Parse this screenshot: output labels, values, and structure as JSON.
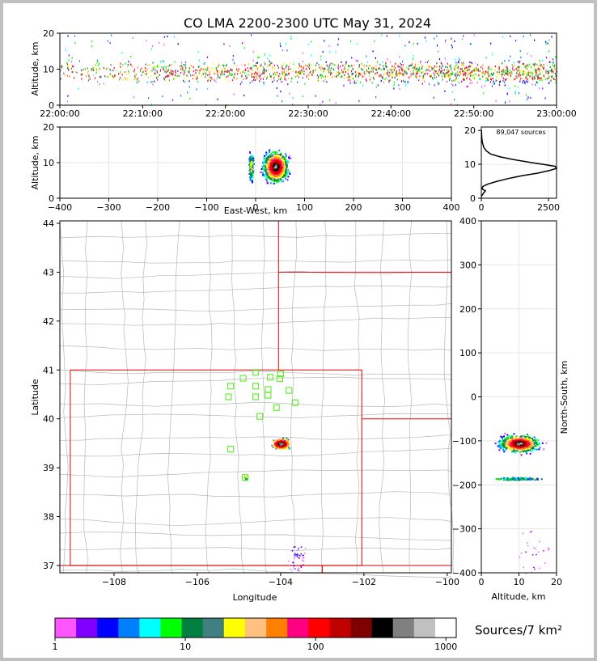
{
  "title": "CO LMA 2200-2300 UTC May 31, 2024",
  "colorbar_label": "Sources/7 km²",
  "chart_data": [
    {
      "panel": "time-height",
      "type": "scatter",
      "ylabel": "Altitude, km",
      "ylim": [
        0,
        20
      ],
      "yticks": [
        "0",
        "10",
        "20"
      ],
      "xticks": [
        "22:00:00",
        "22:10:00",
        "22:20:00",
        "22:30:00",
        "22:40:00",
        "22:50:00",
        "23:00:00"
      ],
      "activity_minutes_heavy": [
        0,
        60
      ],
      "altitude_core_km": [
        5,
        14
      ]
    },
    {
      "panel": "east-west-height",
      "type": "heatmap",
      "xlabel": "East-West, km",
      "ylabel": "Altitude, km",
      "xlim": [
        -400,
        400
      ],
      "ylim": [
        0,
        20
      ],
      "xticks": [
        "−400",
        "−300",
        "−200",
        "−100",
        "0",
        "100",
        "200",
        "300",
        "400"
      ],
      "yticks": [
        "0",
        "10",
        "20"
      ],
      "clusters": [
        {
          "x_center": 40,
          "x_width": 70,
          "z_min": 2,
          "z_max": 20,
          "peak_z": 9
        },
        {
          "x_center": -10,
          "x_width": 12,
          "z_min": 3,
          "z_max": 20,
          "peak_z": 9
        }
      ]
    },
    {
      "panel": "altitude-histogram",
      "type": "line",
      "annotation": "89,047 sources",
      "xlim": [
        0,
        2800
      ],
      "ylim": [
        0,
        21
      ],
      "xticks": [
        "0",
        "2500"
      ],
      "yticks": [
        "0",
        "10",
        "20"
      ],
      "points": [
        [
          0,
          0.5
        ],
        [
          80,
          1.5
        ],
        [
          150,
          2.2
        ],
        [
          20,
          2.8
        ],
        [
          60,
          3.5
        ],
        [
          250,
          4.2
        ],
        [
          600,
          5
        ],
        [
          1000,
          5.8
        ],
        [
          1500,
          6.6
        ],
        [
          2100,
          7.4
        ],
        [
          2550,
          8.2
        ],
        [
          2800,
          8.8
        ],
        [
          2750,
          9.4
        ],
        [
          2300,
          10
        ],
        [
          1800,
          10.6
        ],
        [
          1200,
          11.4
        ],
        [
          700,
          12.2
        ],
        [
          350,
          13
        ],
        [
          180,
          14
        ],
        [
          90,
          15
        ],
        [
          40,
          16.5
        ],
        [
          15,
          18
        ],
        [
          5,
          20
        ]
      ]
    },
    {
      "panel": "plan-view",
      "type": "heatmap",
      "xlabel": "Longitude",
      "ylabel": "Latitude",
      "xlim": [
        -109.3,
        -99.9
      ],
      "ylim": [
        36.85,
        44.05
      ],
      "xticks": [
        "−108",
        "−106",
        "−104",
        "−102",
        "−100"
      ],
      "yticks": [
        "37",
        "38",
        "39",
        "40",
        "41",
        "42",
        "43",
        "44"
      ],
      "stations": [
        [
          -104.6,
          40.95
        ],
        [
          -104.0,
          40.92
        ],
        [
          -104.25,
          40.85
        ],
        [
          -104.9,
          40.83
        ],
        [
          -105.2,
          40.67
        ],
        [
          -104.6,
          40.67
        ],
        [
          -104.3,
          40.6
        ],
        [
          -103.8,
          40.58
        ],
        [
          -104.02,
          40.82
        ],
        [
          -105.25,
          40.45
        ],
        [
          -104.6,
          40.45
        ],
        [
          -104.3,
          40.48
        ],
        [
          -103.65,
          40.33
        ],
        [
          -104.1,
          40.23
        ],
        [
          -104.5,
          40.05
        ],
        [
          -105.2,
          39.38
        ],
        [
          -104.85,
          38.8
        ]
      ],
      "storm_core": {
        "lon": -104.0,
        "lat": 39.5
      },
      "secondary_core": {
        "lon": -104.85,
        "lat": 38.8
      }
    },
    {
      "panel": "north-south-height",
      "type": "heatmap",
      "xlabel": "Altitude, km",
      "ylabel": "North-South, km",
      "xlim": [
        0,
        20
      ],
      "ylim": [
        -400,
        400
      ],
      "xticks": [
        "0",
        "10",
        "20"
      ],
      "yticks": [
        "−400",
        "−300",
        "−200",
        "−100",
        "0",
        "100",
        "200",
        "300",
        "400"
      ],
      "clusters": [
        {
          "y_center": -105,
          "y_width": 55,
          "z_min": 1,
          "z_max": 20,
          "peak_z": 10
        },
        {
          "y_center": -185,
          "y_width": 8,
          "z_min": 3,
          "z_max": 20,
          "peak_z": 10
        }
      ]
    },
    {
      "panel": "colorbar",
      "type": "colorbar",
      "scale": "log",
      "ticks": [
        "1",
        "10",
        "100",
        "1000"
      ],
      "colors": [
        "#ff55ff",
        "#8000ff",
        "#0000ff",
        "#0080ff",
        "#00ffff",
        "#00ff00",
        "#008040",
        "#408080",
        "#ffff00",
        "#ffc080",
        "#ff8000",
        "#ff0080",
        "#ff0000",
        "#c00000",
        "#800000",
        "#000000",
        "#808080",
        "#c0c0c0",
        "#ffffff"
      ]
    }
  ]
}
